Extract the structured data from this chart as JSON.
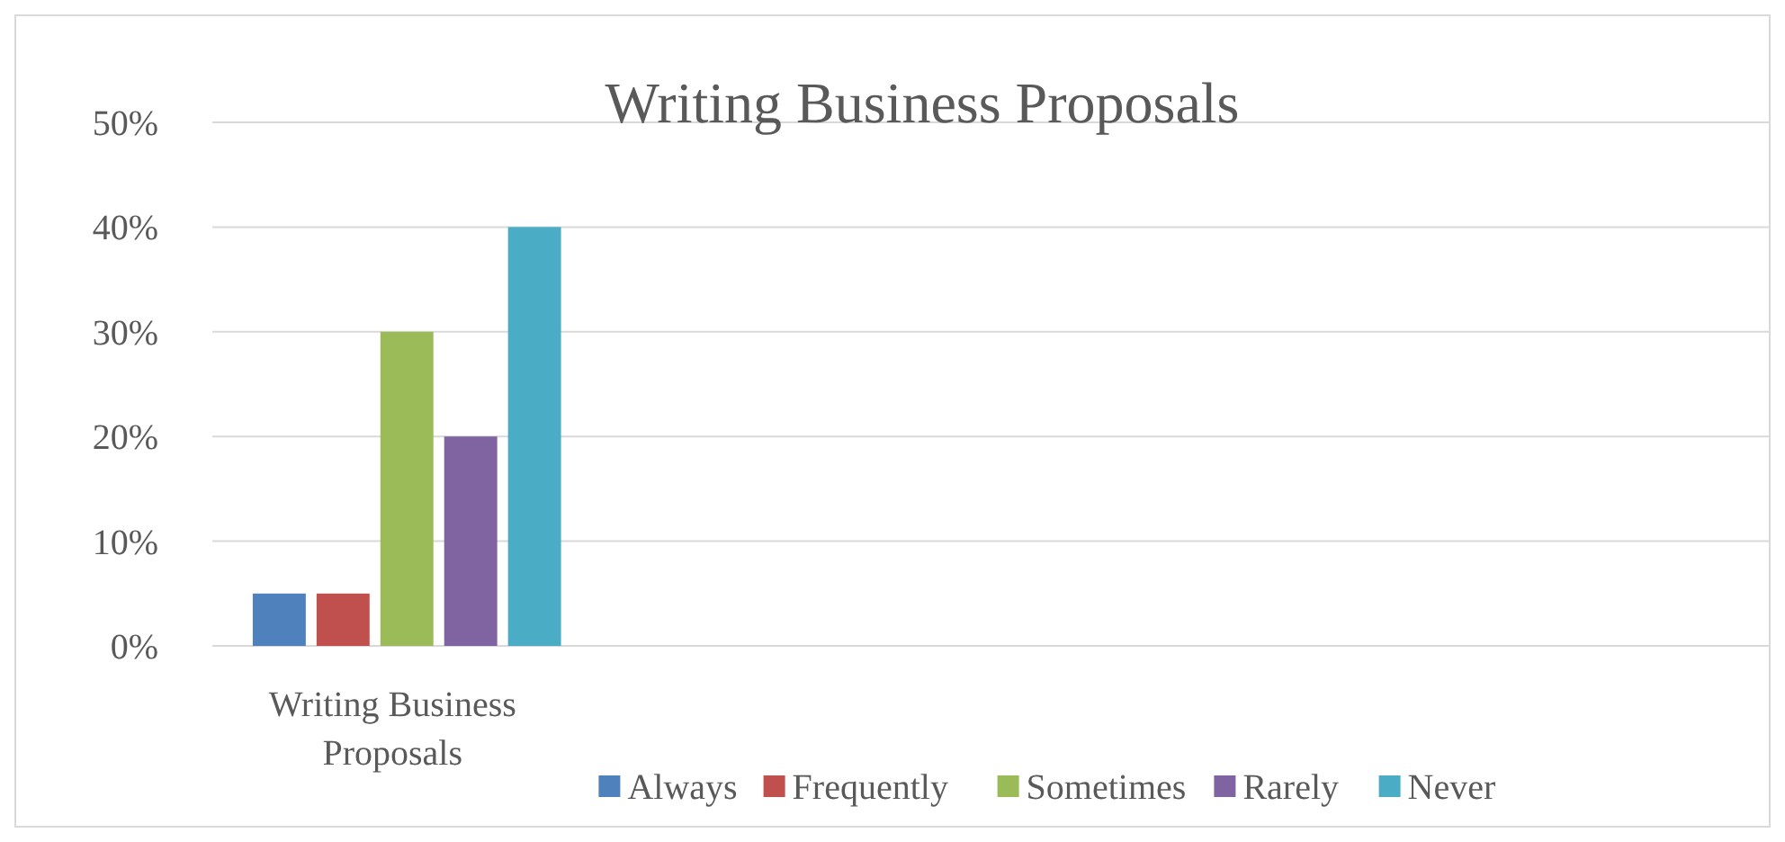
{
  "chart_data": {
    "type": "bar",
    "title": "Writing Business Proposals",
    "categories": [
      "Writing Business Proposals",
      null,
      null,
      null
    ],
    "series": [
      {
        "name": "Always",
        "color": "#4f81bd",
        "values": [
          5,
          null,
          null,
          null
        ]
      },
      {
        "name": "Frequently",
        "color": "#c0504d",
        "values": [
          5,
          null,
          null,
          null
        ]
      },
      {
        "name": "Sometimes",
        "color": "#9bbb59",
        "values": [
          30,
          null,
          null,
          null
        ]
      },
      {
        "name": "Rarely",
        "color": "#8064a2",
        "values": [
          20,
          null,
          null,
          null
        ]
      },
      {
        "name": "Never",
        "color": "#4bacc6",
        "values": [
          40,
          null,
          null,
          null
        ]
      }
    ],
    "ylim": [
      0,
      50
    ],
    "yticks": [
      {
        "value": 0,
        "label": "0%"
      },
      {
        "value": 10,
        "label": "10%"
      },
      {
        "value": 20,
        "label": "20%"
      },
      {
        "value": 30,
        "label": "30%"
      },
      {
        "value": 40,
        "label": "40%"
      },
      {
        "value": 50,
        "label": "50%"
      }
    ],
    "grid": "y",
    "legend": "bottom"
  }
}
